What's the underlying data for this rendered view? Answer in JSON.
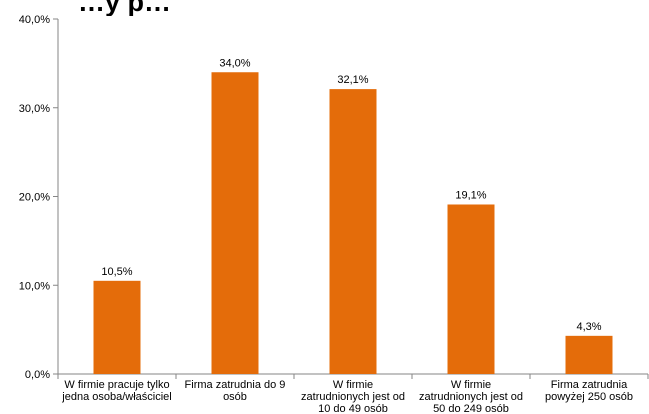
{
  "chart_data": {
    "type": "bar",
    "title": "",
    "title_visible_fragment": "…y p…",
    "categories": [
      [
        "W firmie pracuje tylko",
        "jedna osoba/właściciel"
      ],
      [
        "Firma zatrudnia do 9",
        "osób"
      ],
      [
        "W firmie",
        "zatrudnionych jest od",
        "10 do 49 osób"
      ],
      [
        "W firmie",
        "zatrudnionych jest od",
        "50 do 249 osób"
      ],
      [
        "Firma zatrudnia",
        "powyżej 250 osób"
      ]
    ],
    "values": [
      10.5,
      34.0,
      32.1,
      19.1,
      4.3
    ],
    "value_labels": [
      "10,5%",
      "34,0%",
      "32,1%",
      "19,1%",
      "4,3%"
    ],
    "ylim": [
      0,
      40
    ],
    "yticks": [
      0,
      10,
      20,
      30,
      40
    ],
    "ytick_labels": [
      "0,0%",
      "10,0%",
      "20,0%",
      "30,0%",
      "40,0%"
    ],
    "bar_color": "#E46C0A",
    "xlabel": "",
    "ylabel": "",
    "grid": false,
    "legend": false
  }
}
